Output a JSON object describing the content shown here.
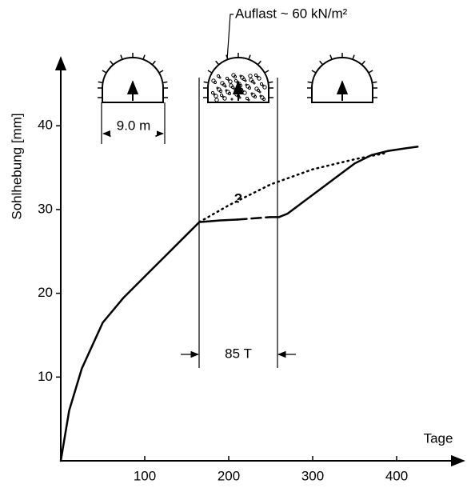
{
  "chart_data": {
    "type": "line",
    "xlabel": "Tage",
    "ylabel": "Sohlhebung  [mm]",
    "xlim": [
      0,
      480
    ],
    "ylim": [
      0,
      47.8
    ],
    "xticks": [
      100,
      200,
      300,
      400
    ],
    "yticks": [
      10,
      20,
      30,
      40
    ],
    "series": [
      {
        "style": "solid",
        "color": "#000000",
        "x": [
          0,
          10,
          25,
          50,
          75,
          100,
          125,
          150,
          165,
          190,
          210
        ],
        "values": [
          0,
          6,
          11,
          16.5,
          19.5,
          22,
          24.5,
          27,
          28.5,
          28.7,
          28.8
        ]
      },
      {
        "style": "dashed",
        "color": "#000000",
        "x": [
          210,
          250
        ],
        "values": [
          28.8,
          29.1
        ]
      },
      {
        "style": "solid",
        "color": "#000000",
        "x": [
          250,
          260,
          270,
          290,
          310,
          330,
          350,
          370,
          390,
          410,
          425
        ],
        "values": [
          29.1,
          29.1,
          29.5,
          31,
          32.5,
          34,
          35.5,
          36.5,
          37,
          37.3,
          37.5
        ]
      },
      {
        "style": "dotted",
        "color": "#000000",
        "x": [
          165,
          200,
          250,
          300,
          350,
          385
        ],
        "values": [
          28.5,
          30.5,
          33,
          34.8,
          36,
          36.7
        ]
      }
    ],
    "annotations": [
      "Auflast ~ 60 kN/m²",
      "9.0 m",
      "85 T",
      "?"
    ]
  }
}
